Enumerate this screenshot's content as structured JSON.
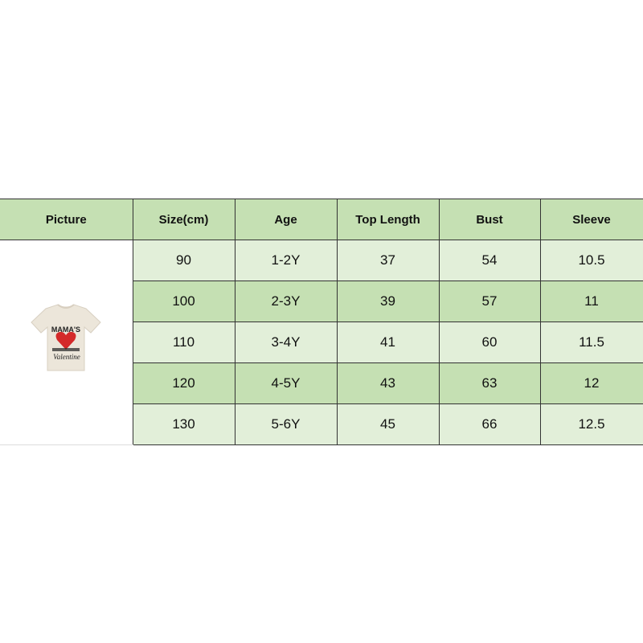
{
  "headers": [
    "Picture",
    "Size(cm)",
    "Age",
    "Top Length",
    "Bust",
    "Sleeve"
  ],
  "rows": [
    [
      "90",
      "1-2Y",
      "37",
      "54",
      "10.5"
    ],
    [
      "100",
      "2-3Y",
      "39",
      "57",
      "11"
    ],
    [
      "110",
      "3-4Y",
      "41",
      "60",
      "11.5"
    ],
    [
      "120",
      "4-5Y",
      "43",
      "63",
      "12"
    ],
    [
      "130",
      "5-6Y",
      "45",
      "66",
      "12.5"
    ]
  ],
  "product_image": {
    "print_text_top": "MAMA'S",
    "print_text_bottom": "Valentine"
  },
  "colors": {
    "header": "#c5e0b3",
    "row_light": "#e2efd9",
    "row_dark": "#c5e0b3",
    "border": "#333333"
  }
}
